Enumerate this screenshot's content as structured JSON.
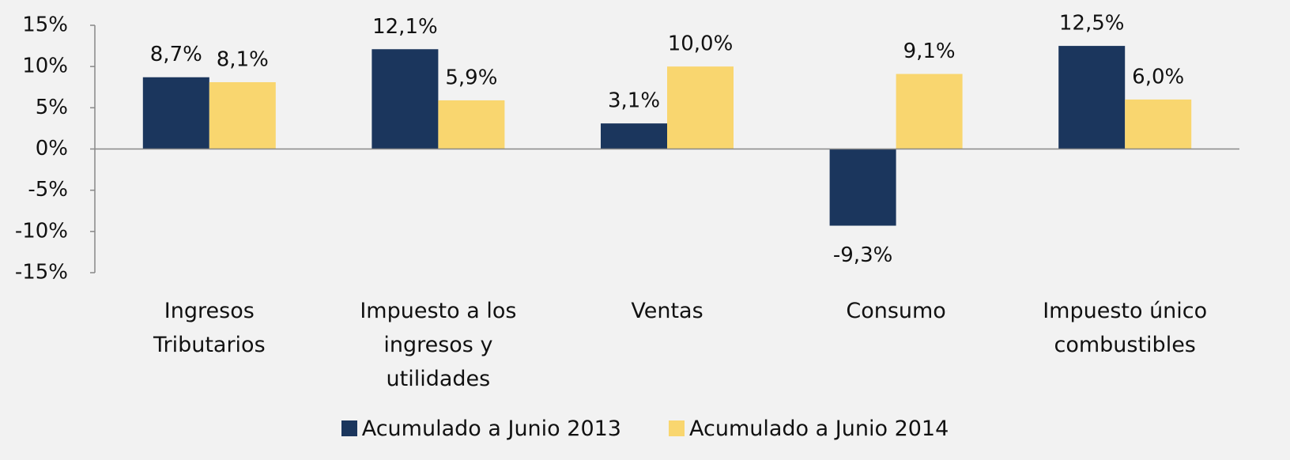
{
  "chart_data": {
    "type": "bar",
    "categories": [
      "Ingresos Tributarios",
      "Impuesto a los ingresos y utilidades",
      "Ventas",
      "Consumo",
      "Impuesto único combustibles"
    ],
    "series": [
      {
        "name": "Acumulado a Junio 2013",
        "color": "#1b365d",
        "values": [
          8.7,
          12.1,
          3.1,
          -9.3,
          12.5
        ],
        "value_labels": [
          "8,7%",
          "12,1%",
          "3,1%",
          "-9,3%",
          "12,5%"
        ]
      },
      {
        "name": "Acumulado a Junio 2014",
        "color": "#f9d66f",
        "values": [
          8.1,
          5.9,
          10.0,
          9.1,
          6.0
        ],
        "value_labels": [
          "8,1%",
          "5,9%",
          "10,0%",
          "9,1%",
          "6,0%"
        ]
      }
    ],
    "ylim": [
      -15,
      15
    ],
    "yticks": [
      {
        "value": 15,
        "label": "15%"
      },
      {
        "value": 10,
        "label": "10%"
      },
      {
        "value": 5,
        "label": "5%"
      },
      {
        "value": 0,
        "label": "0%"
      },
      {
        "value": -5,
        "label": "-5%"
      },
      {
        "value": -10,
        "label": "-10%"
      },
      {
        "value": -15,
        "label": "-15%"
      }
    ],
    "legend": "bottom"
  }
}
